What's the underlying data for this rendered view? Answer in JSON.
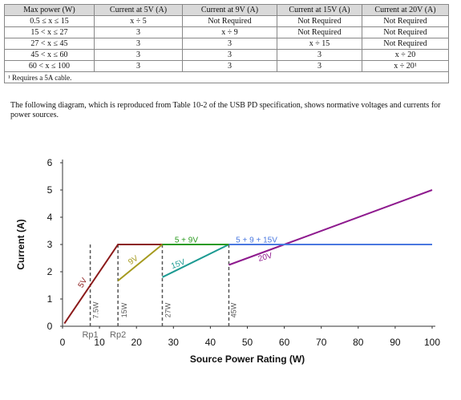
{
  "table": {
    "headers": [
      "Max power (W)",
      "Current at 5V (A)",
      "Current at 9V (A)",
      "Current at 15V (A)",
      "Current at 20V (A)"
    ],
    "rows": [
      [
        "0.5 ≤ x ≤ 15",
        "x ÷ 5",
        "Not Required",
        "Not Required",
        "Not Required"
      ],
      [
        "15 < x ≤ 27",
        "3",
        "x ÷ 9",
        "Not Required",
        "Not Required"
      ],
      [
        "27 < x ≤ 45",
        "3",
        "3",
        "x ÷ 15",
        "Not Required"
      ],
      [
        "45 < x ≤ 60",
        "3",
        "3",
        "3",
        "x ÷ 20"
      ],
      [
        "60 < x ≤ 100",
        "3",
        "3",
        "3",
        "x ÷ 20¹"
      ]
    ],
    "footnote": "¹ Requires a 5A cable."
  },
  "caption": "The following diagram, which is reproduced from Table 10-2 of the USB PD specification, shows normative voltages and currents for power sources.",
  "chart_data": {
    "type": "line",
    "xlabel": "Source Power Rating (W)",
    "ylabel": "Current (A)",
    "xlim": [
      0,
      100
    ],
    "ylim": [
      0,
      6
    ],
    "xticks": [
      0,
      10,
      20,
      30,
      40,
      50,
      60,
      70,
      80,
      90,
      100
    ],
    "yticks": [
      0,
      1,
      2,
      3,
      4,
      5,
      6
    ],
    "grid": false,
    "series": [
      {
        "name": "5V",
        "color": "#8b1a1a",
        "x": [
          0.5,
          15,
          27
        ],
        "y": [
          0.1,
          3,
          3
        ]
      },
      {
        "name": "9V",
        "color": "#a59a1e",
        "x": [
          15,
          27
        ],
        "y": [
          1.67,
          3
        ]
      },
      {
        "name": "15V",
        "color": "#1c9a92",
        "x": [
          27,
          45
        ],
        "y": [
          1.8,
          3
        ]
      },
      {
        "name": "20V",
        "color": "#8e1a8e",
        "x": [
          45,
          60,
          100
        ],
        "y": [
          2.25,
          3,
          5
        ]
      },
      {
        "name": "5 + 9V",
        "color": "#2a9a1e",
        "x": [
          27,
          45
        ],
        "y": [
          3,
          3
        ]
      },
      {
        "name": "5 + 9 + 15V",
        "color": "#4a78e0",
        "x": [
          45,
          100
        ],
        "y": [
          3,
          3
        ]
      }
    ],
    "markers": [
      {
        "label": "7.5W",
        "x": 7.5
      },
      {
        "label": "15W",
        "x": 15
      },
      {
        "label": "27W",
        "x": 27
      },
      {
        "label": "45W",
        "x": 45
      }
    ],
    "annotations": [
      {
        "label": "Rp1",
        "x": 7.5
      },
      {
        "label": "Rp2",
        "x": 15
      }
    ]
  }
}
